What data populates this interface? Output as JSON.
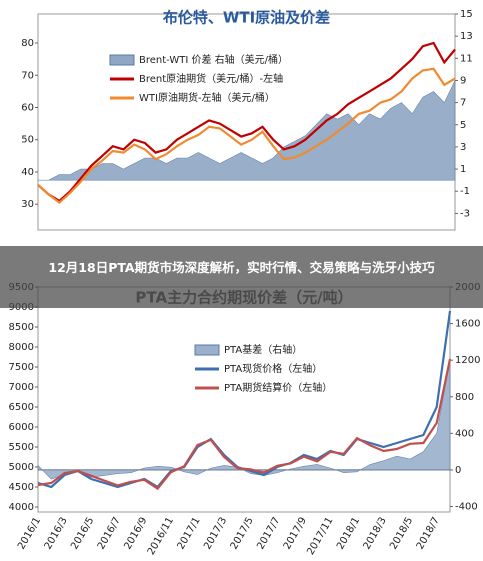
{
  "overlay_title": "12月18日PTA期货市场深度解析，实时行情、交易策略与洗牙小技巧",
  "chart_data": [
    {
      "type": "line",
      "title": "布伦特、WTI原油及价差",
      "ylim": [
        22,
        89
      ],
      "yticks": [
        30,
        40,
        50,
        60,
        70,
        80
      ],
      "y2lim": [
        -4.5,
        15
      ],
      "y2ticks": [
        -3,
        -1,
        1,
        3,
        5,
        7,
        9,
        11,
        13,
        15
      ],
      "series": [
        {
          "name": "Brent-WTI 价差 右轴（美元/桶）",
          "type": "area",
          "axis": "y2",
          "color": "#8fa6c4",
          "values": [
            0,
            0,
            0.5,
            0.5,
            1,
            1,
            1.5,
            1.5,
            1,
            1.5,
            2,
            2,
            1.5,
            2,
            2,
            2.5,
            2,
            1.5,
            2,
            2.5,
            2,
            1.5,
            2,
            3,
            3.5,
            4,
            5,
            6,
            5.5,
            6,
            5,
            6,
            5.5,
            6.5,
            7,
            6,
            7.5,
            8,
            7,
            9
          ]
        },
        {
          "name": "Brent原油期货（美元/桶）-左轴",
          "type": "line",
          "color": "#c00000",
          "values": [
            36,
            33,
            31,
            34,
            38,
            42,
            45,
            48,
            47,
            50,
            49,
            46,
            47,
            50,
            52,
            54,
            56,
            55,
            53,
            51,
            52,
            54,
            50,
            47,
            48,
            50,
            53,
            56,
            58,
            61,
            63,
            65,
            67,
            69,
            72,
            75,
            79,
            80,
            74,
            78
          ]
        },
        {
          "name": "WTI原油期货-左轴（美元/桶）",
          "type": "line",
          "color": "#f08a30",
          "values": [
            36,
            33,
            30.5,
            33.5,
            37,
            41,
            43.5,
            46.5,
            46,
            48.5,
            47,
            44,
            45.5,
            48,
            50,
            51.5,
            54,
            53.5,
            51,
            48.5,
            50,
            52.5,
            48,
            44,
            44.5,
            46,
            48,
            50,
            52.5,
            55,
            58,
            59,
            61.5,
            62.5,
            65,
            69,
            71.5,
            72,
            67,
            69
          ]
        }
      ]
    },
    {
      "type": "line",
      "title": "PTA主力合约期现价差（元/吨）",
      "ylim": [
        3875,
        9500
      ],
      "yticks": [
        4000,
        4500,
        5000,
        5500,
        6000,
        6500,
        7000,
        7500,
        8000,
        8500,
        9000,
        9500
      ],
      "y2lim": [
        -460,
        2000
      ],
      "y2ticks": [
        -400,
        0,
        400,
        800,
        1200,
        1600,
        2000
      ],
      "categories": [
        "2016/1",
        null,
        "2016/3",
        null,
        "2016/5",
        null,
        "2016/7",
        null,
        "2016/9",
        null,
        "2016/11",
        null,
        "2017/1",
        null,
        "2017/3",
        null,
        "2017/5",
        null,
        "2017/7",
        null,
        "2017/9",
        null,
        "2017/11",
        null,
        "2018/1",
        null,
        "2018/3",
        null,
        "2018/5",
        null,
        "2018/7",
        null
      ],
      "series": [
        {
          "name": "PTA基差（右轴）",
          "type": "area",
          "axis": "y2",
          "color": "#9bb0cc",
          "values": [
            50,
            -100,
            -50,
            0,
            -80,
            -60,
            -40,
            -30,
            20,
            40,
            30,
            -20,
            -50,
            20,
            50,
            30,
            -40,
            -60,
            -30,
            10,
            40,
            60,
            20,
            -30,
            -20,
            60,
            100,
            150,
            120,
            200,
            400,
            1200
          ]
        },
        {
          "name": "PTA现货价格（左轴）",
          "type": "line",
          "color": "#3e6fb0",
          "values": [
            4600,
            4500,
            4800,
            4900,
            4700,
            4600,
            4500,
            4600,
            4700,
            4500,
            4900,
            5000,
            5500,
            5700,
            5300,
            5000,
            4900,
            4800,
            5000,
            5100,
            5300,
            5200,
            5400,
            5300,
            5700,
            5600,
            5500,
            5600,
            5700,
            5800,
            6500,
            8900
          ]
        },
        {
          "name": "PTA期货结算价（左轴）",
          "type": "line",
          "color": "#c0504d",
          "values": [
            4550,
            4600,
            4850,
            4900,
            4780,
            4660,
            4540,
            4630,
            4680,
            4460,
            4870,
            5020,
            5550,
            5680,
            5250,
            4970,
            4940,
            4860,
            5030,
            5090,
            5260,
            5140,
            5380,
            5330,
            5720,
            5540,
            5400,
            5450,
            5580,
            5600,
            6100,
            7700
          ]
        }
      ]
    }
  ]
}
